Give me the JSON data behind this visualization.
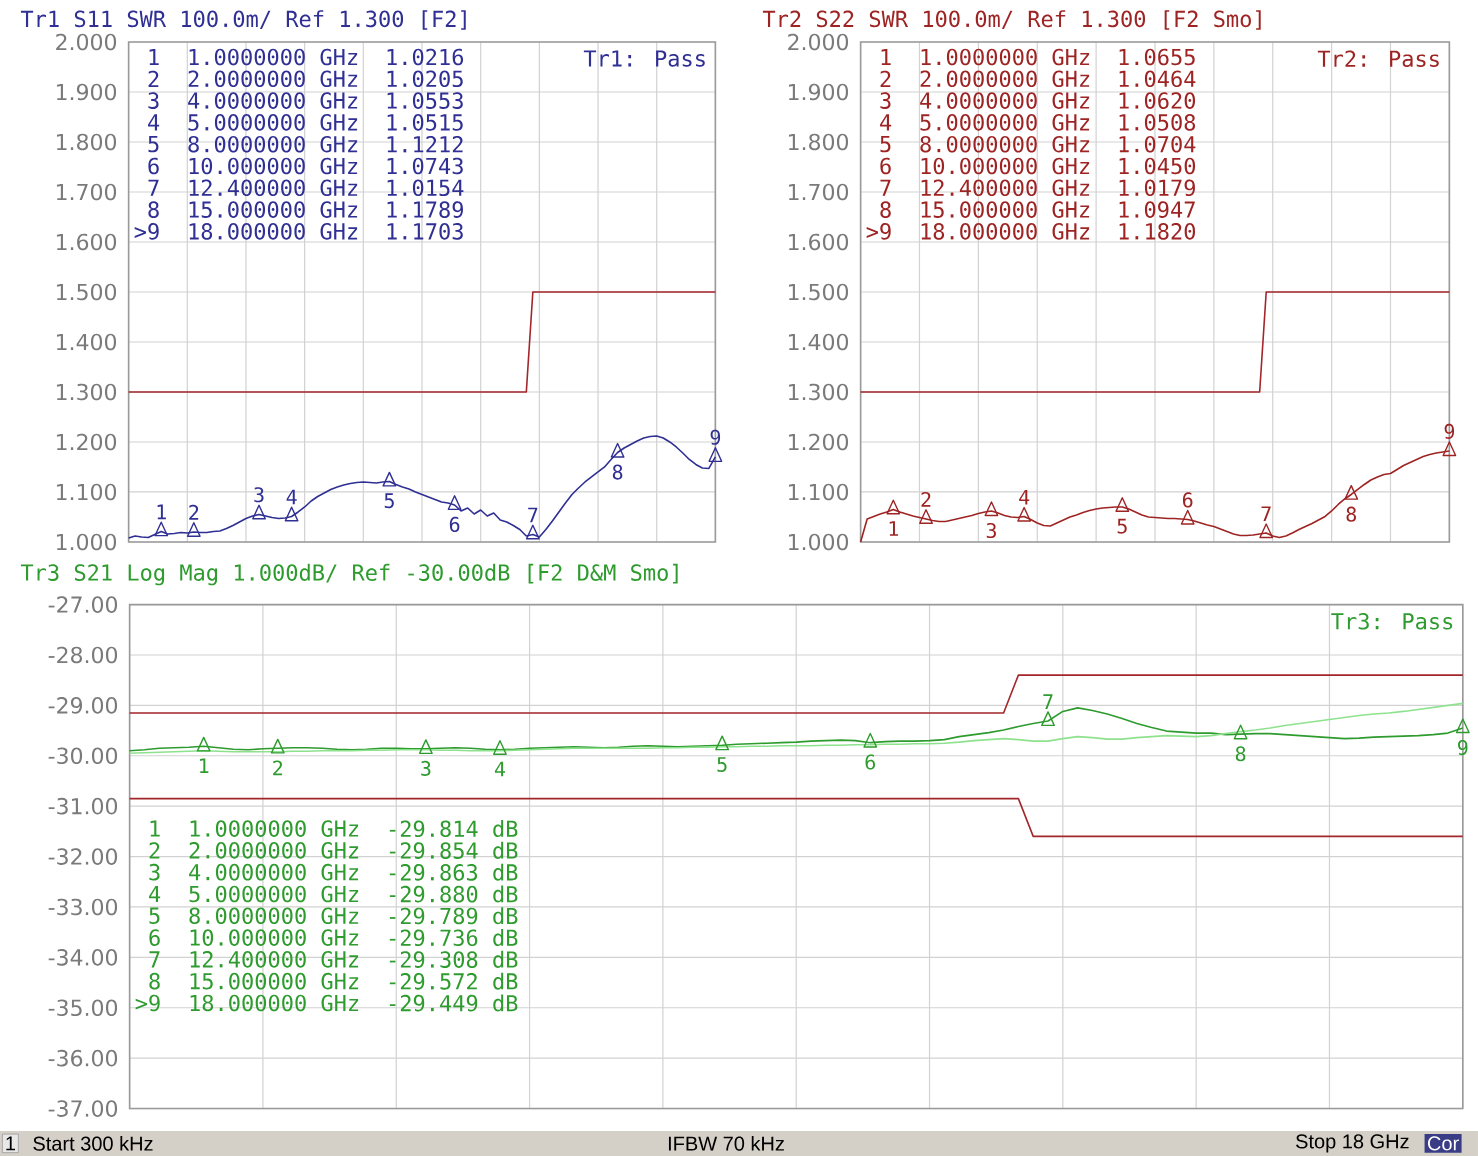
{
  "chart_data": [
    {
      "type": "line",
      "title": "Tr1 S11 SWR 100.0m/ Ref 1.300 [F2]",
      "ylim": [
        1,
        2
      ],
      "tick_labels": "y",
      "grid": true,
      "categories": [
        null,
        null,
        null,
        null,
        null,
        null,
        null,
        null,
        null,
        null,
        null,
        null,
        null,
        null,
        null,
        null,
        null,
        null,
        null,
        null,
        null,
        null,
        null,
        null,
        null,
        null,
        null,
        null,
        null,
        null,
        null,
        null,
        null,
        null,
        null,
        null,
        null,
        null,
        null,
        null,
        null,
        null,
        null,
        null,
        null,
        null,
        null,
        null,
        null,
        null,
        null,
        null,
        null,
        null,
        null,
        null,
        null,
        null,
        null,
        null,
        null,
        null,
        null,
        null,
        null,
        null,
        null,
        null,
        null,
        null,
        null,
        null,
        null,
        null,
        null,
        null,
        null,
        null,
        null,
        null,
        null,
        null,
        null,
        null,
        null,
        null,
        null,
        null,
        null,
        null,
        null
      ],
      "yticks": [
        {
          "value": 1,
          "label": "1.000"
        },
        {
          "value": 1.1,
          "label": "1.100"
        },
        {
          "value": 1.2,
          "label": "1.200"
        },
        {
          "value": 1.3,
          "label": "1.300"
        },
        {
          "value": 1.4,
          "label": "1.400"
        },
        {
          "value": 1.5,
          "label": "1.500"
        },
        {
          "value": 1.6,
          "label": "1.600"
        },
        {
          "value": 1.7,
          "label": "1.700"
        },
        {
          "value": 1.8,
          "label": "1.800"
        },
        {
          "value": 1.9,
          "label": "1.900"
        },
        {
          "value": 2,
          "label": "2.000"
        }
      ],
      "series": [
        {
          "type": "line",
          "color": "#2f2f94",
          "values": [
            1.008,
            1.012,
            1.01,
            1.009,
            1.015,
            1.021,
            1.016,
            1.017,
            1.019,
            1.018,
            1.02,
            1.019,
            1.019,
            1.021,
            1.022,
            1.027,
            1.033,
            1.04,
            1.047,
            1.052,
            1.055,
            1.052,
            1.049,
            1.047,
            1.048,
            1.051,
            1.06,
            1.07,
            1.082,
            1.091,
            1.098,
            1.105,
            1.11,
            1.114,
            1.117,
            1.119,
            1.12,
            1.119,
            1.118,
            1.12,
            1.121,
            1.115,
            1.11,
            1.106,
            1.1,
            1.095,
            1.09,
            1.085,
            1.08,
            1.078,
            1.074,
            1.062,
            1.068,
            1.056,
            1.064,
            1.052,
            1.058,
            1.044,
            1.04,
            1.033,
            1.025,
            1.012,
            1.015,
            1.01,
            1.025,
            1.042,
            1.06,
            1.078,
            1.095,
            1.108,
            1.12,
            1.13,
            1.14,
            1.15,
            1.165,
            1.179,
            1.188,
            1.195,
            1.202,
            1.208,
            1.211,
            1.212,
            1.208,
            1.2,
            1.19,
            1.178,
            1.165,
            1.155,
            1.148,
            1.147,
            1.17
          ]
        },
        {
          "type": "line",
          "color": "#a3262a",
          "values": [
            1.3,
            1.3,
            1.3,
            1.3,
            1.3,
            1.3,
            1.3,
            1.3,
            1.3,
            1.3,
            1.3,
            1.3,
            1.3,
            1.3,
            1.3,
            1.3,
            1.3,
            1.3,
            1.3,
            1.3,
            1.3,
            1.3,
            1.3,
            1.3,
            1.3,
            1.3,
            1.3,
            1.3,
            1.3,
            1.3,
            1.3,
            1.3,
            1.3,
            1.3,
            1.3,
            1.3,
            1.3,
            1.3,
            1.3,
            1.3,
            1.3,
            1.3,
            1.3,
            1.3,
            1.3,
            1.3,
            1.3,
            1.3,
            1.3,
            1.3,
            1.3,
            1.3,
            1.3,
            1.3,
            1.3,
            1.3,
            1.3,
            1.3,
            1.3,
            1.3,
            1.3,
            1.3,
            1.5,
            1.5,
            1.5,
            1.5,
            1.5,
            1.5,
            1.5,
            1.5,
            1.5,
            1.5,
            1.5,
            1.5,
            1.5,
            1.5,
            1.5,
            1.5,
            1.5,
            1.5,
            1.5,
            1.5,
            1.5,
            1.5,
            1.5,
            1.5,
            1.5,
            1.5,
            1.5,
            1.5,
            1.5
          ]
        },
        {
          "type": "scatter",
          "marker": "triangle",
          "color": "#2f2f94",
          "values": [
            null,
            null,
            null,
            null,
            null,
            1.0216,
            null,
            null,
            null,
            null,
            1.0205,
            null,
            null,
            null,
            null,
            null,
            null,
            null,
            null,
            null,
            1.0553,
            null,
            null,
            null,
            null,
            1.0515,
            null,
            null,
            null,
            null,
            null,
            null,
            null,
            null,
            null,
            null,
            null,
            null,
            null,
            null,
            1.1212,
            null,
            null,
            null,
            null,
            null,
            null,
            null,
            null,
            null,
            1.0743,
            null,
            null,
            null,
            null,
            null,
            null,
            null,
            null,
            null,
            null,
            null,
            1.0154,
            null,
            null,
            null,
            null,
            null,
            null,
            null,
            null,
            null,
            null,
            null,
            null,
            1.1789,
            null,
            null,
            null,
            null,
            null,
            null,
            null,
            null,
            null,
            null,
            null,
            null,
            null,
            null,
            1.1703
          ]
        }
      ],
      "annotations": [
        "Tr1: Pass",
        "1",
        "1.0000000 GHz",
        "1.0216",
        "2",
        "2.0000000 GHz",
        "1.0205",
        "3",
        "4.0000000 GHz",
        "1.0553",
        "4",
        "5.0000000 GHz",
        "1.0515",
        "5",
        "8.0000000 GHz",
        "1.1212",
        "6",
        "10.000000 GHz",
        "1.0743",
        "7",
        "12.400000 GHz",
        "1.0154",
        "8",
        "15.000000 GHz",
        "1.1789",
        ">9",
        "18.000000 GHz",
        "1.1703",
        "1",
        "2",
        "3",
        "4",
        "5",
        "6",
        "7",
        "8",
        "9"
      ]
    },
    {
      "type": "line",
      "title": "Tr2 S22 SWR 100.0m/ Ref 1.300 [F2 Smo]",
      "ylim": [
        1,
        2
      ],
      "tick_labels": "y",
      "grid": true,
      "categories": [
        null,
        null,
        null,
        null,
        null,
        null,
        null,
        null,
        null,
        null,
        null,
        null,
        null,
        null,
        null,
        null,
        null,
        null,
        null,
        null,
        null,
        null,
        null,
        null,
        null,
        null,
        null,
        null,
        null,
        null,
        null,
        null,
        null,
        null,
        null,
        null,
        null,
        null,
        null,
        null,
        null,
        null,
        null,
        null,
        null,
        null,
        null,
        null,
        null,
        null,
        null,
        null,
        null,
        null,
        null,
        null,
        null,
        null,
        null,
        null,
        null,
        null,
        null,
        null,
        null,
        null,
        null,
        null,
        null,
        null,
        null,
        null,
        null,
        null,
        null,
        null,
        null,
        null,
        null,
        null,
        null,
        null,
        null,
        null,
        null,
        null,
        null,
        null,
        null,
        null,
        null
      ],
      "yticks": [
        {
          "value": 1,
          "label": "1.000"
        },
        {
          "value": 1.1,
          "label": "1.100"
        },
        {
          "value": 1.2,
          "label": "1.200"
        },
        {
          "value": 1.3,
          "label": "1.300"
        },
        {
          "value": 1.4,
          "label": "1.400"
        },
        {
          "value": 1.5,
          "label": "1.500"
        },
        {
          "value": 1.6,
          "label": "1.600"
        },
        {
          "value": 1.7,
          "label": "1.700"
        },
        {
          "value": 1.8,
          "label": "1.800"
        },
        {
          "value": 1.9,
          "label": "1.900"
        },
        {
          "value": 2,
          "label": "2.000"
        }
      ],
      "series": [
        {
          "type": "line",
          "color": "#9e2424",
          "values": [
            1.0,
            1.046,
            1.051,
            1.056,
            1.06,
            1.065,
            1.06,
            1.056,
            1.052,
            1.049,
            1.046,
            1.043,
            1.041,
            1.041,
            1.044,
            1.047,
            1.05,
            1.053,
            1.057,
            1.06,
            1.062,
            1.058,
            1.053,
            1.05,
            1.049,
            1.051,
            1.045,
            1.038,
            1.033,
            1.032,
            1.038,
            1.044,
            1.05,
            1.054,
            1.059,
            1.063,
            1.066,
            1.068,
            1.069,
            1.07,
            1.07,
            1.066,
            1.06,
            1.054,
            1.05,
            1.049,
            1.048,
            1.047,
            1.047,
            1.046,
            1.045,
            1.042,
            1.038,
            1.034,
            1.031,
            1.026,
            1.021,
            1.016,
            1.013,
            1.013,
            1.014,
            1.016,
            1.018,
            1.012,
            1.009,
            1.012,
            1.018,
            1.025,
            1.031,
            1.037,
            1.044,
            1.051,
            1.062,
            1.075,
            1.086,
            1.095,
            1.105,
            1.115,
            1.124,
            1.13,
            1.135,
            1.137,
            1.145,
            1.153,
            1.159,
            1.165,
            1.171,
            1.175,
            1.178,
            1.18,
            1.182
          ]
        },
        {
          "type": "line",
          "color": "#a3262a",
          "values": [
            1.3,
            1.3,
            1.3,
            1.3,
            1.3,
            1.3,
            1.3,
            1.3,
            1.3,
            1.3,
            1.3,
            1.3,
            1.3,
            1.3,
            1.3,
            1.3,
            1.3,
            1.3,
            1.3,
            1.3,
            1.3,
            1.3,
            1.3,
            1.3,
            1.3,
            1.3,
            1.3,
            1.3,
            1.3,
            1.3,
            1.3,
            1.3,
            1.3,
            1.3,
            1.3,
            1.3,
            1.3,
            1.3,
            1.3,
            1.3,
            1.3,
            1.3,
            1.3,
            1.3,
            1.3,
            1.3,
            1.3,
            1.3,
            1.3,
            1.3,
            1.3,
            1.3,
            1.3,
            1.3,
            1.3,
            1.3,
            1.3,
            1.3,
            1.3,
            1.3,
            1.3,
            1.3,
            1.5,
            1.5,
            1.5,
            1.5,
            1.5,
            1.5,
            1.5,
            1.5,
            1.5,
            1.5,
            1.5,
            1.5,
            1.5,
            1.5,
            1.5,
            1.5,
            1.5,
            1.5,
            1.5,
            1.5,
            1.5,
            1.5,
            1.5,
            1.5,
            1.5,
            1.5,
            1.5,
            1.5,
            1.5
          ]
        },
        {
          "type": "scatter",
          "marker": "triangle",
          "color": "#9e2424",
          "values": [
            null,
            null,
            null,
            null,
            null,
            1.0655,
            null,
            null,
            null,
            null,
            1.0464,
            null,
            null,
            null,
            null,
            null,
            null,
            null,
            null,
            null,
            1.062,
            null,
            null,
            null,
            null,
            1.0508,
            null,
            null,
            null,
            null,
            null,
            null,
            null,
            null,
            null,
            null,
            null,
            null,
            null,
            null,
            1.0704,
            null,
            null,
            null,
            null,
            null,
            null,
            null,
            null,
            null,
            1.045,
            null,
            null,
            null,
            null,
            null,
            null,
            null,
            null,
            null,
            null,
            null,
            1.0179,
            null,
            null,
            null,
            null,
            null,
            null,
            null,
            null,
            null,
            null,
            null,
            null,
            1.0947,
            null,
            null,
            null,
            null,
            null,
            null,
            null,
            null,
            null,
            null,
            null,
            null,
            null,
            null,
            1.182
          ]
        }
      ],
      "annotations": [
        "Tr2: Pass",
        "1",
        "1.0000000 GHz",
        "1.0655",
        "2",
        "2.0000000 GHz",
        "1.0464",
        "3",
        "4.0000000 GHz",
        "1.0620",
        "4",
        "5.0000000 GHz",
        "1.0508",
        "5",
        "8.0000000 GHz",
        "1.0704",
        "6",
        "10.000000 GHz",
        "1.0450",
        "7",
        "12.400000 GHz",
        "1.0179",
        "8",
        "15.000000 GHz",
        "1.0947",
        ">9",
        "18.000000 GHz",
        "1.1820",
        "1",
        "2",
        "3",
        "4",
        "5",
        "6",
        "7",
        "8",
        "9"
      ]
    },
    {
      "type": "line",
      "title": "Tr3 S21 Log Mag 1.000dB/ Ref -30.00dB [F2 D&M Smo]",
      "ylim": [
        -37,
        -27
      ],
      "tick_labels": "y",
      "grid": true,
      "categories": [
        null,
        null,
        null,
        null,
        null,
        null,
        null,
        null,
        null,
        null,
        null,
        null,
        null,
        null,
        null,
        null,
        null,
        null,
        null,
        null,
        null,
        null,
        null,
        null,
        null,
        null,
        null,
        null,
        null,
        null,
        null,
        null,
        null,
        null,
        null,
        null,
        null,
        null,
        null,
        null,
        null,
        null,
        null,
        null,
        null,
        null,
        null,
        null,
        null,
        null,
        null,
        null,
        null,
        null,
        null,
        null,
        null,
        null,
        null,
        null,
        null,
        null,
        null,
        null,
        null,
        null,
        null,
        null,
        null,
        null,
        null,
        null,
        null,
        null,
        null,
        null,
        null,
        null,
        null,
        null,
        null,
        null,
        null,
        null,
        null,
        null,
        null,
        null,
        null,
        null,
        null
      ],
      "yticks": [
        {
          "value": -37,
          "label": "-37.00"
        },
        {
          "value": -36,
          "label": "-36.00"
        },
        {
          "value": -35,
          "label": "-35.00"
        },
        {
          "value": -34,
          "label": "-34.00"
        },
        {
          "value": -33,
          "label": "-33.00"
        },
        {
          "value": -32,
          "label": "-32.00"
        },
        {
          "value": -31,
          "label": "-31.00"
        },
        {
          "value": -30,
          "label": "-30.00"
        },
        {
          "value": -29,
          "label": "-29.00"
        },
        {
          "value": -28,
          "label": "-28.00"
        },
        {
          "value": -27,
          "label": "-27.00"
        }
      ],
      "series": [
        {
          "type": "line",
          "color": "#2e9b2e",
          "values": [
            -29.9,
            -29.88,
            -29.85,
            -29.84,
            -29.83,
            -29.81,
            -29.84,
            -29.87,
            -29.88,
            -29.86,
            -29.85,
            -29.84,
            -29.84,
            -29.85,
            -29.87,
            -29.88,
            -29.87,
            -29.85,
            -29.85,
            -29.86,
            -29.86,
            -29.85,
            -29.84,
            -29.85,
            -29.87,
            -29.88,
            -29.87,
            -29.85,
            -29.84,
            -29.83,
            -29.82,
            -29.83,
            -29.84,
            -29.83,
            -29.81,
            -29.8,
            -29.81,
            -29.82,
            -29.81,
            -29.8,
            -29.79,
            -29.77,
            -29.76,
            -29.75,
            -29.74,
            -29.73,
            -29.71,
            -29.7,
            -29.69,
            -29.7,
            -29.74,
            -29.72,
            -29.71,
            -29.71,
            -29.7,
            -29.68,
            -29.62,
            -29.58,
            -29.54,
            -29.49,
            -29.42,
            -29.36,
            -29.31,
            -29.12,
            -29.05,
            -29.1,
            -29.17,
            -29.26,
            -29.36,
            -29.44,
            -29.51,
            -29.53,
            -29.55,
            -29.55,
            -29.58,
            -29.57,
            -29.56,
            -29.56,
            -29.58,
            -29.6,
            -29.62,
            -29.64,
            -29.66,
            -29.65,
            -29.63,
            -29.62,
            -29.61,
            -29.6,
            -29.58,
            -29.55,
            -29.45
          ]
        },
        {
          "type": "line",
          "color": "#8ee28e",
          "values": [
            -29.95,
            -29.94,
            -29.93,
            -29.92,
            -29.91,
            -29.9,
            -29.91,
            -29.92,
            -29.92,
            -29.92,
            -29.92,
            -29.91,
            -29.91,
            -29.9,
            -29.9,
            -29.9,
            -29.89,
            -29.89,
            -29.88,
            -29.88,
            -29.88,
            -29.89,
            -29.89,
            -29.9,
            -29.9,
            -29.9,
            -29.89,
            -29.88,
            -29.87,
            -29.86,
            -29.85,
            -29.85,
            -29.85,
            -29.85,
            -29.85,
            -29.85,
            -29.84,
            -29.84,
            -29.83,
            -29.83,
            -29.82,
            -29.82,
            -29.81,
            -29.81,
            -29.8,
            -29.8,
            -29.8,
            -29.79,
            -29.79,
            -29.78,
            -29.78,
            -29.77,
            -29.77,
            -29.76,
            -29.76,
            -29.75,
            -29.73,
            -29.7,
            -29.68,
            -29.66,
            -29.68,
            -29.71,
            -29.71,
            -29.66,
            -29.62,
            -29.64,
            -29.67,
            -29.67,
            -29.64,
            -29.62,
            -29.6,
            -29.61,
            -29.62,
            -29.6,
            -29.56,
            -29.52,
            -29.49,
            -29.45,
            -29.4,
            -29.36,
            -29.32,
            -29.28,
            -29.24,
            -29.2,
            -29.17,
            -29.15,
            -29.12,
            -29.08,
            -29.04,
            -29.0,
            -28.96
          ]
        },
        {
          "type": "line",
          "color": "#a3262a",
          "values": [
            -29.15,
            -29.15,
            -29.15,
            -29.15,
            -29.15,
            -29.15,
            -29.15,
            -29.15,
            -29.15,
            -29.15,
            -29.15,
            -29.15,
            -29.15,
            -29.15,
            -29.15,
            -29.15,
            -29.15,
            -29.15,
            -29.15,
            -29.15,
            -29.15,
            -29.15,
            -29.15,
            -29.15,
            -29.15,
            -29.15,
            -29.15,
            -29.15,
            -29.15,
            -29.15,
            -29.15,
            -29.15,
            -29.15,
            -29.15,
            -29.15,
            -29.15,
            -29.15,
            -29.15,
            -29.15,
            -29.15,
            -29.15,
            -29.15,
            -29.15,
            -29.15,
            -29.15,
            -29.15,
            -29.15,
            -29.15,
            -29.15,
            -29.15,
            -29.15,
            -29.15,
            -29.15,
            -29.15,
            -29.15,
            -29.15,
            -29.15,
            -29.15,
            -29.15,
            -29.15,
            -28.4,
            -28.4,
            -28.4,
            -28.4,
            -28.4,
            -28.4,
            -28.4,
            -28.4,
            -28.4,
            -28.4,
            -28.4,
            -28.4,
            -28.4,
            -28.4,
            -28.4,
            -28.4,
            -28.4,
            -28.4,
            -28.4,
            -28.4,
            -28.4,
            -28.4,
            -28.4,
            -28.4,
            -28.4,
            -28.4,
            -28.4,
            -28.4,
            -28.4,
            -28.4,
            -28.4
          ]
        },
        {
          "type": "line",
          "color": "#a3262a",
          "values": [
            -30.85,
            -30.85,
            -30.85,
            -30.85,
            -30.85,
            -30.85,
            -30.85,
            -30.85,
            -30.85,
            -30.85,
            -30.85,
            -30.85,
            -30.85,
            -30.85,
            -30.85,
            -30.85,
            -30.85,
            -30.85,
            -30.85,
            -30.85,
            -30.85,
            -30.85,
            -30.85,
            -30.85,
            -30.85,
            -30.85,
            -30.85,
            -30.85,
            -30.85,
            -30.85,
            -30.85,
            -30.85,
            -30.85,
            -30.85,
            -30.85,
            -30.85,
            -30.85,
            -30.85,
            -30.85,
            -30.85,
            -30.85,
            -30.85,
            -30.85,
            -30.85,
            -30.85,
            -30.85,
            -30.85,
            -30.85,
            -30.85,
            -30.85,
            -30.85,
            -30.85,
            -30.85,
            -30.85,
            -30.85,
            -30.85,
            -30.85,
            -30.85,
            -30.85,
            -30.85,
            -30.85,
            -31.6,
            -31.6,
            -31.6,
            -31.6,
            -31.6,
            -31.6,
            -31.6,
            -31.6,
            -31.6,
            -31.6,
            -31.6,
            -31.6,
            -31.6,
            -31.6,
            -31.6,
            -31.6,
            -31.6,
            -31.6,
            -31.6,
            -31.6,
            -31.6,
            -31.6,
            -31.6,
            -31.6,
            -31.6,
            -31.6,
            -31.6,
            -31.6,
            -31.6,
            -31.6
          ]
        },
        {
          "type": "scatter",
          "marker": "triangle",
          "color": "#2e9b2e",
          "values": [
            null,
            null,
            null,
            null,
            null,
            -29.814,
            null,
            null,
            null,
            null,
            -29.854,
            null,
            null,
            null,
            null,
            null,
            null,
            null,
            null,
            null,
            -29.863,
            null,
            null,
            null,
            null,
            -29.88,
            null,
            null,
            null,
            null,
            null,
            null,
            null,
            null,
            null,
            null,
            null,
            null,
            null,
            null,
            -29.789,
            null,
            null,
            null,
            null,
            null,
            null,
            null,
            null,
            null,
            -29.736,
            null,
            null,
            null,
            null,
            null,
            null,
            null,
            null,
            null,
            null,
            null,
            -29.308,
            null,
            null,
            null,
            null,
            null,
            null,
            null,
            null,
            null,
            null,
            null,
            null,
            -29.572,
            null,
            null,
            null,
            null,
            null,
            null,
            null,
            null,
            null,
            null,
            null,
            null,
            null,
            null,
            -29.449
          ]
        }
      ],
      "annotations": [
        "Tr3: Pass",
        "1",
        "1.0000000 GHz",
        "-29.814 dB",
        "2",
        "2.0000000 GHz",
        "-29.854 dB",
        "3",
        "4.0000000 GHz",
        "-29.863 dB",
        "4",
        "5.0000000 GHz",
        "-29.880 dB",
        "5",
        "8.0000000 GHz",
        "-29.789 dB",
        "6",
        "10.000000 GHz",
        "-29.736 dB",
        "7",
        "12.400000 GHz",
        "-29.308 dB",
        "8",
        "15.000000 GHz",
        "-29.572 dB",
        ">9",
        "18.000000 GHz",
        "-29.449 dB",
        "1",
        "2",
        "3",
        "4",
        "5",
        "6",
        "7",
        "8",
        "9"
      ]
    },
    {
      "type": "other",
      "annotations": [
        "1",
        "Start 300 kHz",
        "IFBW 70 kHz",
        "Stop 18 GHz",
        "Cor"
      ]
    }
  ]
}
